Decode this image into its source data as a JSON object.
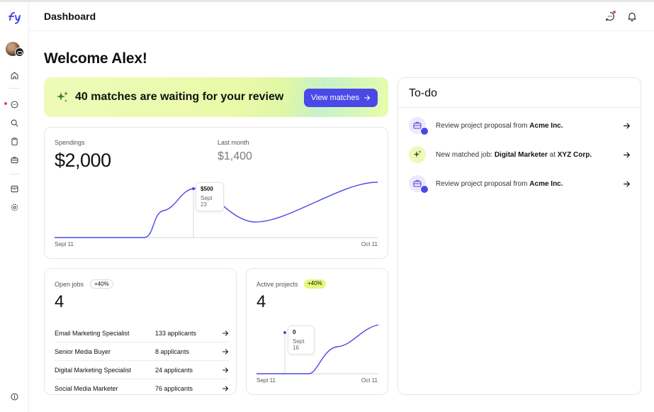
{
  "header": {
    "title": "Dashboard"
  },
  "welcome": "Welcome Alex!",
  "banner": {
    "text": "40 matches are waiting for your review",
    "button_label": "View matches"
  },
  "spendings": {
    "label": "Spendings",
    "value": "$2,000",
    "last_month_label": "Last month",
    "last_month_value": "$1,400",
    "tooltip_value": "$500",
    "tooltip_date": "Sept 23",
    "x_start": "Sept 11",
    "x_end": "Oct 11"
  },
  "open_jobs": {
    "label": "Open jobs",
    "badge": "+40%",
    "value": "4",
    "jobs": [
      {
        "title": "Email Marketing Specialist",
        "applicants": "133 applicants"
      },
      {
        "title": "Senior Media Buyer",
        "applicants": "8 applicants"
      },
      {
        "title": "Digital Marketing Specialist",
        "applicants": "24 applicants"
      },
      {
        "title": "Social Media Marketer",
        "applicants": "76 applicants"
      }
    ]
  },
  "active_projects": {
    "label": "Active projects",
    "badge": "+40%",
    "value": "4",
    "tooltip_value": "0",
    "tooltip_date": "Sept 16",
    "x_start": "Sept 11",
    "x_end": "Oct 11"
  },
  "todo": {
    "title": "To-do",
    "items": [
      {
        "prefix": "Review project proposal from ",
        "strong": "Acme Inc.",
        "mid": "",
        "strong2": "",
        "icon": "briefcase-icon"
      },
      {
        "prefix": "New matched job: ",
        "strong": "Digital Marketer",
        "mid": " at ",
        "strong2": "XYZ Corp.",
        "icon": "sparkle-icon"
      },
      {
        "prefix": "Review project proposal from ",
        "strong": "Acme Inc.",
        "mid": "",
        "strong2": "",
        "icon": "briefcase-icon"
      }
    ]
  },
  "colors": {
    "accent": "#4b48e8",
    "lime": "#e4f97c",
    "alert": "#e5484d"
  }
}
